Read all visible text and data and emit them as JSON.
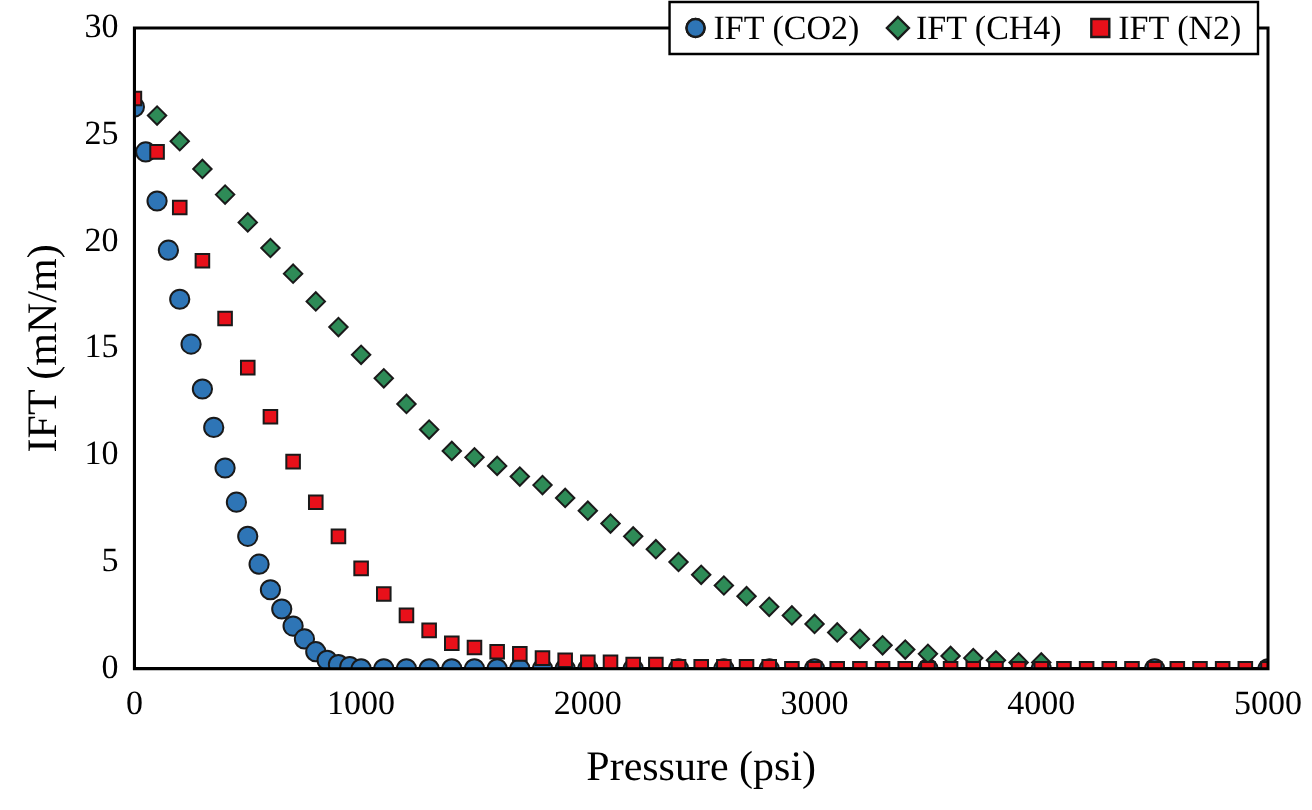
{
  "chart_data": {
    "type": "scatter",
    "xlabel": "Pressure (psi)",
    "ylabel": "IFT (mN/m)",
    "xlim": [
      0,
      5000
    ],
    "xticks": [
      0,
      1000,
      2000,
      3000,
      4000,
      5000
    ],
    "ylim": [
      0,
      30
    ],
    "yticks": [
      0,
      5,
      10,
      15,
      20,
      25,
      30
    ],
    "grid": false,
    "legend": "top right",
    "series": [
      {
        "name": "IFT (CO2)",
        "color": "#2e75b6",
        "marker": "circle",
        "x": [
          0,
          50,
          100,
          150,
          200,
          250,
          300,
          350,
          400,
          450,
          500,
          550,
          600,
          650,
          700,
          750,
          800,
          850,
          900,
          950,
          1000,
          1100,
          1200,
          1300,
          1400,
          1500,
          1600,
          1700,
          1800,
          1900,
          2000,
          2200,
          2400,
          2600,
          2800,
          3000,
          3500,
          4000,
          4500,
          5000
        ],
        "values": [
          26.3,
          24.2,
          21.9,
          19.6,
          17.3,
          15.2,
          13.1,
          11.3,
          9.4,
          7.8,
          6.2,
          4.9,
          3.7,
          2.8,
          2.0,
          1.4,
          0.8,
          0.4,
          0.2,
          0.1,
          0,
          0,
          0,
          0,
          0,
          0,
          0,
          0,
          0,
          0,
          0,
          0,
          0,
          0,
          0,
          0,
          0,
          0,
          0,
          0
        ]
      },
      {
        "name": "IFT (CH4)",
        "color": "#2e8b57",
        "marker": "diamond",
        "x": [
          100,
          200,
          300,
          400,
          500,
          600,
          700,
          800,
          900,
          1000,
          1100,
          1200,
          1300,
          1400,
          1500,
          1600,
          1700,
          1800,
          1900,
          2000,
          2100,
          2200,
          2300,
          2400,
          2500,
          2600,
          2700,
          2800,
          2900,
          3000,
          3100,
          3200,
          3300,
          3400,
          3500,
          3600,
          3700,
          3800,
          3900,
          4000
        ],
        "values": [
          25.9,
          24.7,
          23.4,
          22.2,
          20.9,
          19.7,
          18.5,
          17.2,
          16.0,
          14.7,
          13.6,
          12.4,
          11.2,
          10.2,
          9.9,
          9.5,
          9.0,
          8.6,
          8.0,
          7.4,
          6.8,
          6.2,
          5.6,
          5.0,
          4.4,
          3.9,
          3.4,
          2.9,
          2.5,
          2.1,
          1.7,
          1.4,
          1.1,
          0.9,
          0.7,
          0.6,
          0.5,
          0.4,
          0.3,
          0.3
        ]
      },
      {
        "name": "IFT (N2)",
        "color": "#e8101a",
        "marker": "square",
        "x": [
          0,
          100,
          200,
          300,
          400,
          500,
          600,
          700,
          800,
          900,
          1000,
          1100,
          1200,
          1300,
          1400,
          1500,
          1600,
          1700,
          1800,
          1900,
          2000,
          2100,
          2200,
          2300,
          2400,
          2500,
          2600,
          2700,
          2800,
          2900,
          3000,
          3100,
          3200,
          3300,
          3400,
          3500,
          3600,
          3700,
          3800,
          3900,
          4000,
          4100,
          4200,
          4300,
          4400,
          4500,
          4600,
          4700,
          4800,
          4900,
          5000
        ],
        "values": [
          26.7,
          24.2,
          21.6,
          19.1,
          16.4,
          14.1,
          11.8,
          9.7,
          7.8,
          6.2,
          4.7,
          3.5,
          2.5,
          1.8,
          1.2,
          1.0,
          0.8,
          0.7,
          0.5,
          0.4,
          0.3,
          0.3,
          0.2,
          0.2,
          0.1,
          0.1,
          0.1,
          0.1,
          0.1,
          0,
          0,
          0,
          0,
          0,
          0,
          0,
          0,
          0,
          0,
          0,
          0,
          0,
          0,
          0,
          0,
          0,
          0,
          0,
          0,
          0,
          0
        ]
      }
    ]
  }
}
